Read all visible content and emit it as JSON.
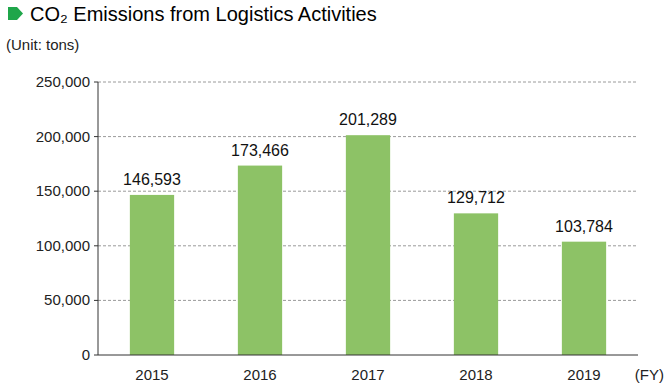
{
  "chart_data": {
    "type": "bar",
    "title": "CO₂ Emissions from Logistics Activities",
    "y_label": "(Unit: tons)",
    "x_label": "(FY)",
    "categories": [
      "2015",
      "2016",
      "2017",
      "2018",
      "2019"
    ],
    "values": [
      146593,
      173466,
      201289,
      129712,
      103784
    ],
    "value_labels": [
      "146,593",
      "173,466",
      "201,289",
      "129,712",
      "103,784"
    ],
    "color": "#8dc266",
    "ylim": [
      0,
      250000
    ],
    "yticks": [
      0,
      {
        "value": 50000,
        "label": "50,000"
      },
      {
        "value": 100000,
        "label": "100,000"
      },
      {
        "value": 150000,
        "label": "150,000"
      },
      {
        "value": 200000,
        "label": "200,000"
      },
      {
        "value": 250000,
        "label": "250,000"
      }
    ],
    "grid": true,
    "data_labels": true
  }
}
